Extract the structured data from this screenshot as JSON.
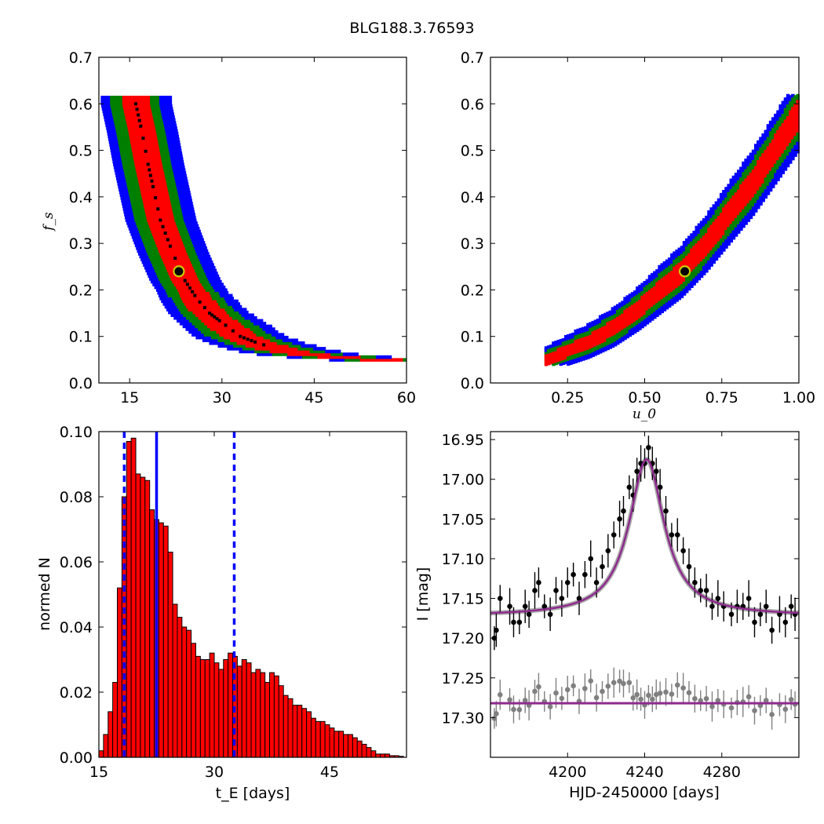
{
  "figure_title": "BLG188.3.76593",
  "colors": {
    "blue": "#0000ff",
    "green": "#007f00",
    "red": "#ff0000",
    "best_fit_marker_edge": "#cccc00",
    "hist_fill": "#ff0000",
    "median_line": "#0000ff",
    "model": "#8e2a8e",
    "data_points": "#000000",
    "residuals": "#808080"
  },
  "chart_data": [
    {
      "panel": "top-left",
      "type": "heatmap",
      "title": "",
      "xlabel": "",
      "ylabel": "f_s",
      "xlim": [
        10,
        60
      ],
      "ylim": [
        0.0,
        0.7
      ],
      "xticks": [
        "15",
        "30",
        "45",
        "60"
      ],
      "yticks": [
        "0.0",
        "0.1",
        "0.2",
        "0.3",
        "0.4",
        "0.5",
        "0.6",
        "0.7"
      ],
      "description_of_contours": "confidence regions blue>green>red, black = highest density",
      "ridge_tE": [
        16,
        17,
        18,
        19,
        20,
        22,
        24,
        26,
        28,
        30,
        33,
        36,
        40,
        45,
        50,
        56
      ],
      "ridge_fs": [
        0.6,
        0.54,
        0.47,
        0.41,
        0.35,
        0.28,
        0.22,
        0.18,
        0.15,
        0.13,
        0.1,
        0.085,
        0.07,
        0.06,
        0.055,
        0.05
      ],
      "best_fit": {
        "tE": 23,
        "fs": 0.24
      }
    },
    {
      "panel": "top-right",
      "type": "heatmap",
      "title": "",
      "xlabel": "u_0",
      "ylabel": "",
      "xlim": [
        0.0,
        1.0
      ],
      "ylim": [
        0.0,
        0.7
      ],
      "xticks": [
        "0.25",
        "0.50",
        "0.75",
        "1.00"
      ],
      "yticks": [
        "0.0",
        "0.1",
        "0.2",
        "0.3",
        "0.4",
        "0.5",
        "0.6",
        "0.7"
      ],
      "ridge_u0": [
        0.18,
        0.25,
        0.32,
        0.4,
        0.48,
        0.55,
        0.62,
        0.7,
        0.78,
        0.85,
        0.92,
        1.0
      ],
      "ridge_fs": [
        0.05,
        0.07,
        0.09,
        0.12,
        0.16,
        0.2,
        0.24,
        0.3,
        0.37,
        0.43,
        0.5,
        0.58
      ],
      "best_fit": {
        "u0": 0.63,
        "fs": 0.24
      }
    },
    {
      "panel": "bottom-left",
      "type": "bar",
      "title": "",
      "xlabel": "t_E [days]",
      "ylabel": "normed N",
      "xlim": [
        15,
        55
      ],
      "ylim": [
        0.0,
        0.1
      ],
      "xticks": [
        "15",
        "30",
        "45"
      ],
      "yticks": [
        "0.00",
        "0.02",
        "0.04",
        "0.06",
        "0.08",
        "0.10"
      ],
      "bin_start": 15,
      "bin_width": 0.6,
      "values": [
        0.002,
        0.007,
        0.014,
        0.023,
        0.052,
        0.08,
        0.097,
        0.098,
        0.087,
        0.086,
        0.085,
        0.076,
        0.073,
        0.072,
        0.071,
        0.063,
        0.047,
        0.043,
        0.04,
        0.039,
        0.035,
        0.031,
        0.03,
        0.03,
        0.032,
        0.029,
        0.027,
        0.03,
        0.032,
        0.031,
        0.028,
        0.03,
        0.029,
        0.026,
        0.027,
        0.026,
        0.023,
        0.026,
        0.025,
        0.022,
        0.019,
        0.018,
        0.016,
        0.016,
        0.015,
        0.014,
        0.012,
        0.011,
        0.011,
        0.01,
        0.009,
        0.008,
        0.008,
        0.007,
        0.007,
        0.006,
        0.005,
        0.004,
        0.003,
        0.002,
        0.001,
        0.001,
        0.001,
        0.0005,
        0.0005,
        0.0003
      ],
      "median": 22.5,
      "lower_bound": 18.3,
      "upper_bound": 32.6
    },
    {
      "panel": "bottom-right",
      "type": "scatter",
      "title": "",
      "xlabel": "HJD-2450000 [days]",
      "ylabel": "I [mag]",
      "xlim": [
        4160,
        4320
      ],
      "ylim": [
        17.35,
        16.94
      ],
      "y_inverted": true,
      "xticks": [
        "4200",
        "4240",
        "4280"
      ],
      "yticks": [
        "16.95",
        "17.00",
        "17.05",
        "17.10",
        "17.15",
        "17.20",
        "17.25",
        "17.30"
      ],
      "model": {
        "t0": 4241,
        "baseline": 17.172,
        "peak": 16.975,
        "width": 14
      },
      "residual_offset_mag": 17.282,
      "data": [
        [
          4162,
          17.2
        ],
        [
          4163,
          17.19
        ],
        [
          4165,
          17.15
        ],
        [
          4170,
          17.16
        ],
        [
          4172,
          17.18
        ],
        [
          4175,
          17.18
        ],
        [
          4178,
          17.16
        ],
        [
          4180,
          17.17
        ],
        [
          4183,
          17.14
        ],
        [
          4185,
          17.13
        ],
        [
          4188,
          17.16
        ],
        [
          4191,
          17.17
        ],
        [
          4194,
          17.14
        ],
        [
          4197,
          17.15
        ],
        [
          4200,
          17.13
        ],
        [
          4203,
          17.12
        ],
        [
          4206,
          17.15
        ],
        [
          4209,
          17.12
        ],
        [
          4212,
          17.1
        ],
        [
          4215,
          17.13
        ],
        [
          4218,
          17.11
        ],
        [
          4221,
          17.09
        ],
        [
          4224,
          17.07
        ],
        [
          4227,
          17.05
        ],
        [
          4229,
          17.04
        ],
        [
          4232,
          17.01
        ],
        [
          4234,
          17.02
        ],
        [
          4236,
          16.99
        ],
        [
          4238,
          16.98
        ],
        [
          4240,
          16.98
        ],
        [
          4242,
          16.96
        ],
        [
          4244,
          16.98
        ],
        [
          4246,
          16.99
        ],
        [
          4248,
          17.01
        ],
        [
          4251,
          17.04
        ],
        [
          4254,
          17.07
        ],
        [
          4257,
          17.07
        ],
        [
          4260,
          17.09
        ],
        [
          4263,
          17.11
        ],
        [
          4266,
          17.13
        ],
        [
          4269,
          17.14
        ],
        [
          4272,
          17.14
        ],
        [
          4275,
          17.16
        ],
        [
          4278,
          17.15
        ],
        [
          4281,
          17.16
        ],
        [
          4285,
          17.17
        ],
        [
          4288,
          17.16
        ],
        [
          4291,
          17.16
        ],
        [
          4294,
          17.15
        ],
        [
          4297,
          17.18
        ],
        [
          4300,
          17.17
        ],
        [
          4303,
          17.16
        ],
        [
          4306,
          17.19
        ],
        [
          4310,
          17.17
        ],
        [
          4313,
          17.18
        ],
        [
          4316,
          17.16
        ],
        [
          4318,
          17.17
        ]
      ]
    }
  ]
}
